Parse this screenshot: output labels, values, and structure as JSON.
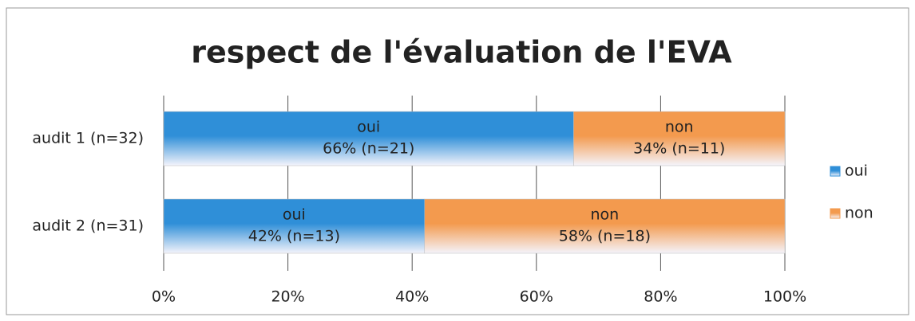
{
  "chart_data": {
    "type": "bar",
    "orientation": "horizontal",
    "stacked": true,
    "title": "respect de l'évaluation de l'EVA",
    "categories": [
      "audit 1 (n=32)",
      "audit 2 (n=31)"
    ],
    "series": [
      {
        "name": "oui",
        "color": "#2f8fd8",
        "values": [
          66,
          42
        ],
        "value_labels": [
          "66% (n=21)",
          "42% (n=13)"
        ]
      },
      {
        "name": "non",
        "color": "#f39a4e",
        "values": [
          34,
          58
        ],
        "value_labels": [
          "34% (n=11)",
          "58% (n=18)"
        ]
      }
    ],
    "xlim": [
      0,
      100
    ],
    "xticks": [
      {
        "value": 0,
        "label": "0%"
      },
      {
        "value": 20,
        "label": "20%"
      },
      {
        "value": 40,
        "label": "40%"
      },
      {
        "value": 60,
        "label": "60%"
      },
      {
        "value": 80,
        "label": "80%"
      },
      {
        "value": 100,
        "label": "100%"
      }
    ],
    "grid": true,
    "legend": "right"
  }
}
